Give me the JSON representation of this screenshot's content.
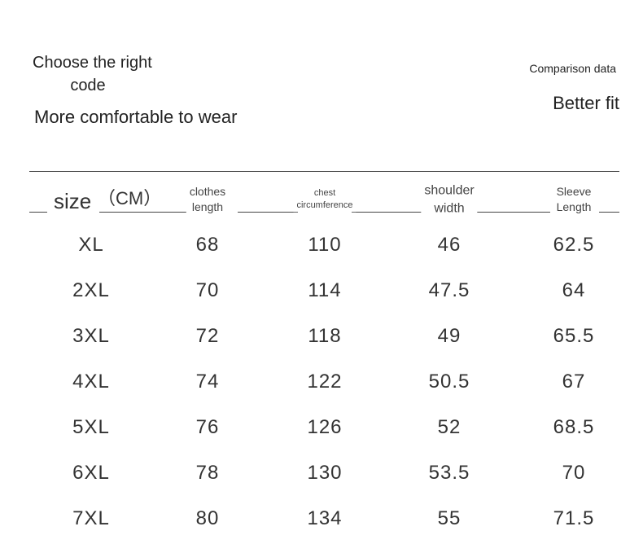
{
  "header": {
    "title_lines": [
      "Choose the right",
      "code"
    ],
    "subtitle": "More comfortable to wear",
    "right_caption": "Comparison data",
    "right_title": "Better fit"
  },
  "table": {
    "size_label": "size",
    "unit": "（CM）",
    "columns": [
      [
        "clothes",
        "length"
      ],
      [
        "chest",
        "circumference"
      ],
      [
        "shoulder",
        "width"
      ],
      [
        "Sleeve",
        "Length"
      ]
    ],
    "rows": [
      [
        "XL",
        68,
        110,
        46,
        62.5
      ],
      [
        "2XL",
        70,
        114,
        47.5,
        64
      ],
      [
        "3XL",
        72,
        118,
        49,
        65.5
      ],
      [
        "4XL",
        74,
        122,
        50.5,
        67
      ],
      [
        "5XL",
        76,
        126,
        52,
        68.5
      ],
      [
        "6XL",
        78,
        130,
        53.5,
        70
      ],
      [
        "7XL",
        80,
        134,
        55,
        71.5
      ]
    ]
  }
}
